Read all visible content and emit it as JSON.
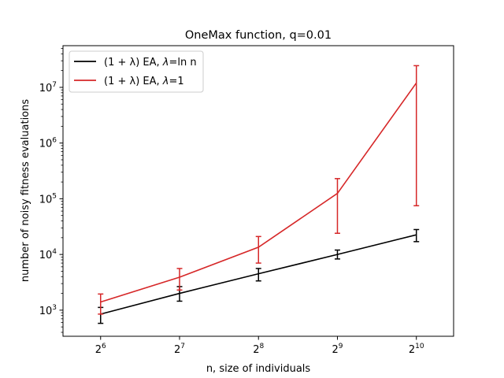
{
  "chart_data": {
    "type": "line",
    "title": "OneMax function, q=0.01",
    "xlabel": "n, size of individuals",
    "ylabel": "number of noisy fitness evaluations",
    "x_scale": "log2",
    "y_scale": "log10",
    "x": [
      64,
      128,
      256,
      512,
      1024
    ],
    "x_ticks": [
      {
        "base": "2",
        "exp": "6"
      },
      {
        "base": "2",
        "exp": "7"
      },
      {
        "base": "2",
        "exp": "8"
      },
      {
        "base": "2",
        "exp": "9"
      },
      {
        "base": "2",
        "exp": "10"
      }
    ],
    "y_ticks": [
      {
        "value": 1000,
        "base": "10",
        "exp": "3"
      },
      {
        "value": 10000,
        "base": "10",
        "exp": "4"
      },
      {
        "value": 100000,
        "base": "10",
        "exp": "5"
      },
      {
        "value": 1000000,
        "base": "10",
        "exp": "6"
      },
      {
        "value": 10000000,
        "base": "10",
        "exp": "7"
      }
    ],
    "xlim": [
      46,
      1420
    ],
    "ylim": [
      340,
      56000000
    ],
    "grid": false,
    "legend_position": "top-left",
    "series": [
      {
        "name_prefix": "(1 + λ) EA, ",
        "name_lambda": "λ",
        "name_suffix": "=ln n",
        "color": "#000000",
        "values": [
          850,
          2000,
          4500,
          10000,
          22500
        ],
        "err_low": [
          580,
          1450,
          3350,
          8300,
          17000
        ],
        "err_high": [
          1120,
          2650,
          5600,
          12000,
          28000
        ]
      },
      {
        "name_prefix": "(1 + λ) EA, ",
        "name_lambda": "λ",
        "name_suffix": "=1",
        "color": "#d62728",
        "values": [
          1400,
          3900,
          13500,
          125000,
          12000000
        ],
        "err_low": [
          850,
          2300,
          7000,
          24000,
          75000
        ],
        "err_high": [
          1950,
          5600,
          21000,
          230000,
          24500000
        ]
      }
    ]
  }
}
